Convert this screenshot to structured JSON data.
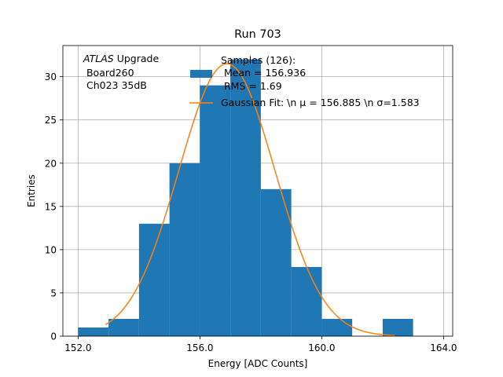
{
  "chart_data": {
    "type": "bar",
    "title": "Run 703",
    "xlabel": "Energy [ADC Counts]",
    "ylabel": "Entries",
    "xlim": [
      151.5,
      164.3
    ],
    "ylim": [
      0,
      33.6
    ],
    "xticks": [
      152.0,
      156.0,
      160.0,
      164.0
    ],
    "xtick_labels": [
      "152.0",
      "156.0",
      "160.0",
      "164.0"
    ],
    "yticks": [
      0,
      5,
      10,
      15,
      20,
      25,
      30
    ],
    "ytick_labels": [
      "0",
      "5",
      "10",
      "15",
      "20",
      "25",
      "30"
    ],
    "grid": true,
    "bin_edges": [
      152.0,
      153.0,
      154.0,
      155.0,
      156.0,
      157.0,
      158.0,
      159.0,
      160.0,
      161.0,
      162.0,
      163.0
    ],
    "counts": [
      1,
      2,
      13,
      20,
      29,
      32,
      17,
      8,
      2,
      0,
      2
    ],
    "bar_color": "#1f77b4",
    "fit": {
      "type": "gaussian",
      "mu": 156.885,
      "sigma": 1.583,
      "amplitude": 31.5,
      "x_range": [
        152.9,
        162.4
      ],
      "color": "#ff7f0e"
    },
    "annotation": {
      "line1_italic": "ATLAS",
      "line1_rest": " Upgrade",
      "line2": " Board260",
      "line3": " Ch023 35dB"
    },
    "legend": {
      "position": "top-right",
      "entries": [
        {
          "kind": "patch",
          "color": "#1f77b4",
          "lines": [
            "Samples (126):",
            "Mean = 156.936",
            "RMS = 1.69"
          ]
        },
        {
          "kind": "line",
          "color": "#ff7f0e",
          "label": "Gaussian Fit: \\n μ = 156.885 \\n σ=1.583"
        }
      ]
    }
  }
}
